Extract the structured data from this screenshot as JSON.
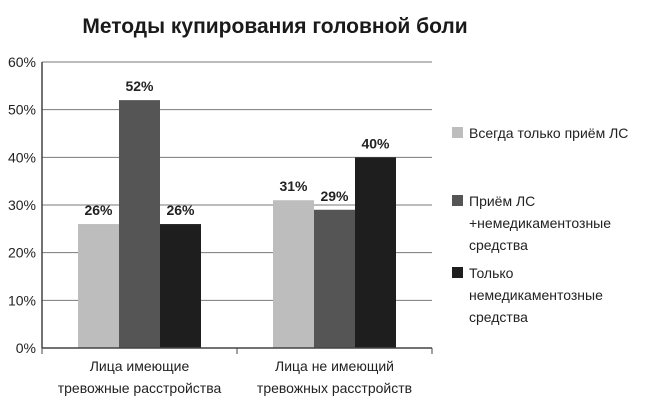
{
  "chart_data": {
    "type": "bar",
    "title": "Методы купирования головной боли",
    "categories": [
      [
        "Лица имеющие",
        "тревожные расстройства"
      ],
      [
        "Лица не имеющий",
        "тревожных расстройств"
      ]
    ],
    "series": [
      {
        "name": [
          "Всегда только приём ЛС"
        ],
        "values": [
          26,
          31
        ],
        "labels": [
          "26%",
          "31%"
        ],
        "color": "#bdbdbd"
      },
      {
        "name": [
          "Приём ЛС",
          "+немедикаментозные",
          "средства"
        ],
        "values": [
          52,
          29
        ],
        "labels": [
          "52%",
          "29%"
        ],
        "color": "#555555"
      },
      {
        "name": [
          "Только",
          "немедикаментозные",
          "средства"
        ],
        "values": [
          26,
          40
        ],
        "labels": [
          "26%",
          "40%"
        ],
        "color": "#1e1e1e"
      }
    ],
    "yticks": [
      "0%",
      "10%",
      "20%",
      "30%",
      "40%",
      "50%",
      "60%"
    ],
    "ylim": [
      0,
      60
    ],
    "grid": true,
    "legend": "right"
  }
}
